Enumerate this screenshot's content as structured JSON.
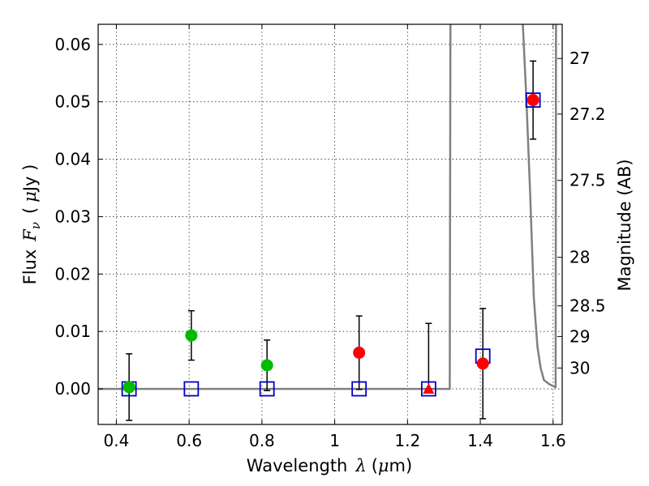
{
  "chart_data": {
    "type": "scatter",
    "x_axis": {
      "label_prefix": "Wavelength",
      "label_symbol": "λ",
      "label_unit_open": "(",
      "label_unit_symbol": "μ",
      "label_unit_close": "m)",
      "range": [
        0.35,
        1.625
      ],
      "ticks": [
        0.4,
        0.6,
        0.8,
        1.0,
        1.2,
        1.4,
        1.6
      ],
      "tick_labels": [
        "0.4",
        "0.6",
        "0.8",
        "1",
        "1.2",
        "1.4",
        "1.6"
      ]
    },
    "y_axis": {
      "label_prefix": "Flux",
      "label_symbol": "F",
      "label_subscript": "ν",
      "label_unit_open": "(",
      "label_unit_symbol": "μ",
      "label_unit_close": "Jy )",
      "range": [
        -0.0062,
        0.0635
      ],
      "ticks": [
        0.0,
        0.01,
        0.02,
        0.03,
        0.04,
        0.05,
        0.06
      ],
      "tick_labels": [
        "0.00",
        "0.01",
        "0.02",
        "0.03",
        "0.04",
        "0.05",
        "0.06"
      ]
    },
    "y2_axis": {
      "label": "Magnitude (AB)",
      "ticks": [
        27,
        27.2,
        27.5,
        28,
        28.5,
        29,
        30
      ],
      "tick_labels": [
        "27",
        "27.2",
        "27.5",
        "28",
        "28.5",
        "29",
        "30"
      ]
    },
    "grid": true,
    "series": [
      {
        "marker": "circle",
        "color": "#00bb00",
        "points": [
          {
            "x": 0.435,
            "y": 0.0003,
            "err": 0.0058
          },
          {
            "x": 0.606,
            "y": 0.0093,
            "err": 0.0043
          },
          {
            "x": 0.814,
            "y": 0.0041,
            "err": 0.0044
          }
        ]
      },
      {
        "marker": "circle",
        "color": "#ff0000",
        "points": [
          {
            "x": 1.067,
            "y": 0.0063,
            "err": 0.0064
          },
          {
            "x": 1.407,
            "y": 0.0044,
            "err": 0.0096
          },
          {
            "x": 1.545,
            "y": 0.0503,
            "err": 0.0068
          }
        ]
      },
      {
        "marker": "triangle",
        "color": "#ff0000",
        "points": [
          {
            "x": 1.258,
            "y": 0.0,
            "err_low": 0.0,
            "err_high": 0.0114
          }
        ]
      },
      {
        "marker": "square",
        "color": "#0000cc",
        "points": [
          {
            "x": 0.435,
            "y": 0.0
          },
          {
            "x": 0.606,
            "y": 0.0
          },
          {
            "x": 0.814,
            "y": 0.0
          },
          {
            "x": 1.067,
            "y": 0.0
          },
          {
            "x": 1.258,
            "y": 0.0
          },
          {
            "x": 1.407,
            "y": 0.0057
          },
          {
            "x": 1.545,
            "y": 0.0503
          }
        ]
      }
    ],
    "model_curve": {
      "color": "#808080",
      "points": [
        [
          0.35,
          0.0
        ],
        [
          1.316,
          0.0
        ],
        [
          1.318,
          0.07
        ],
        [
          1.512,
          0.07
        ],
        [
          1.527,
          0.05
        ],
        [
          1.537,
          0.034
        ],
        [
          1.547,
          0.016
        ],
        [
          1.557,
          0.0073
        ],
        [
          1.566,
          0.0036
        ],
        [
          1.575,
          0.0015
        ],
        [
          1.59,
          0.0008
        ],
        [
          1.606,
          0.0003
        ],
        [
          1.607,
          0.0003
        ],
        [
          1.608,
          0.07
        ]
      ]
    }
  }
}
